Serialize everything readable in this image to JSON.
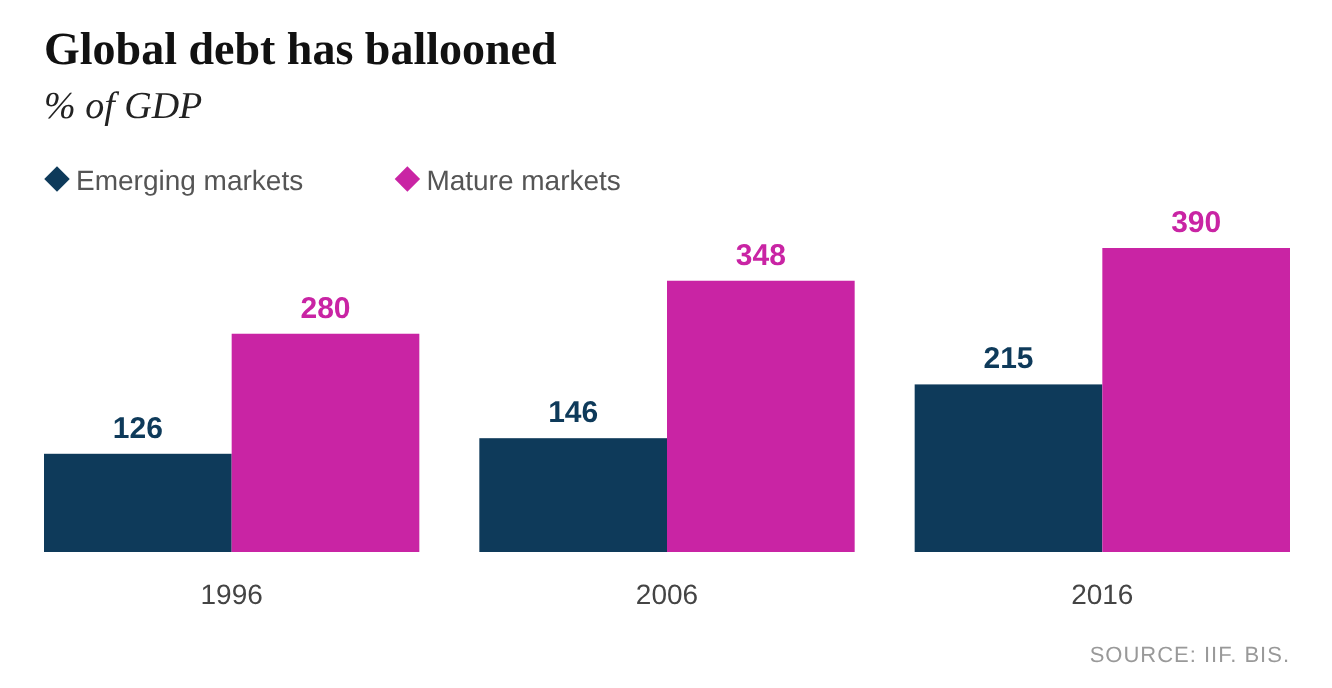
{
  "chart_data": {
    "type": "bar",
    "title": "Global debt has ballooned",
    "subtitle": "% of GDP",
    "categories": [
      "1996",
      "2006",
      "2016"
    ],
    "series": [
      {
        "name": "Emerging markets",
        "color": "#0e3a5a",
        "values": [
          126,
          146,
          215
        ]
      },
      {
        "name": "Mature markets",
        "color": "#c924a4",
        "values": [
          280,
          348,
          390
        ]
      }
    ],
    "data_labels": true,
    "legend": "top left",
    "annotations": [
      "SOURCE: IIF. BIS."
    ]
  }
}
